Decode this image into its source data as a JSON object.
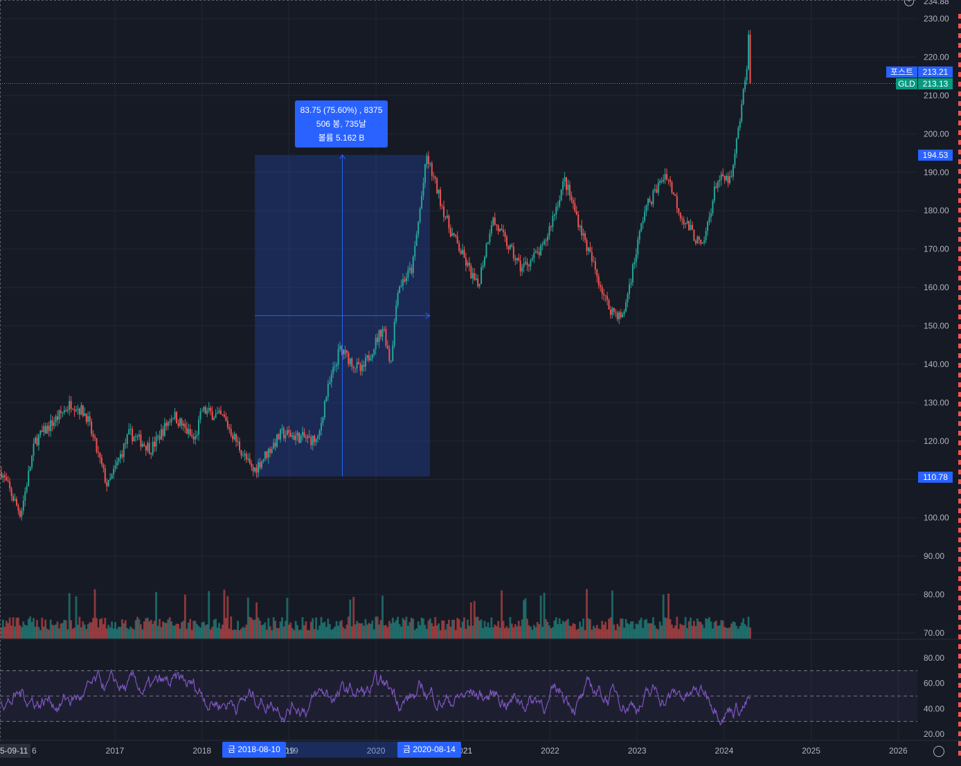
{
  "chart_data": [
    {
      "type": "candlestick",
      "symbol": "GLD",
      "y_ticks": [
        "230.00",
        "220.00",
        "210.00",
        "200.00",
        "190.00",
        "180.00",
        "170.00",
        "160.00",
        "150.00",
        "140.00",
        "130.00",
        "120.00",
        "110.00",
        "100.00",
        "90.00",
        "80.00",
        "70.00"
      ],
      "y_top_partial": "234.88",
      "x_ticks": [
        "2017",
        "2018",
        "2019",
        "2020",
        "2021",
        "2022",
        "2023",
        "2024",
        "2025",
        "2026"
      ],
      "x_tick_2016_partial": "6",
      "x_edge_label": "5-09-11",
      "last_close": "213.13",
      "post_price": "213.21",
      "post_label": "포스트",
      "symbol_label": "GLD",
      "approx_path": [
        [
          "2015-09-11",
          112
        ],
        [
          "2015-11",
          105
        ],
        [
          "2015-12",
          101
        ],
        [
          "2016-02",
          120
        ],
        [
          "2016-07",
          130
        ],
        [
          "2016-09",
          127
        ],
        [
          "2016-12",
          108
        ],
        [
          "2017-03",
          122
        ],
        [
          "2017-06",
          118
        ],
        [
          "2017-09",
          127
        ],
        [
          "2017-12",
          120
        ],
        [
          "2018-01",
          128
        ],
        [
          "2018-04",
          126
        ],
        [
          "2018-08",
          112
        ],
        [
          "2018-12",
          122
        ],
        [
          "2019-05",
          120
        ],
        [
          "2019-06",
          131
        ],
        [
          "2019-08",
          144
        ],
        [
          "2019-11",
          138
        ],
        [
          "2020-02",
          150
        ],
        [
          "2020-03",
          140
        ],
        [
          "2020-04",
          160
        ],
        [
          "2020-06",
          165
        ],
        [
          "2020-08",
          194
        ],
        [
          "2020-11",
          176
        ],
        [
          "2021-03",
          160
        ],
        [
          "2021-05",
          178
        ],
        [
          "2021-09",
          165
        ],
        [
          "2021-12",
          170
        ],
        [
          "2022-03",
          188
        ],
        [
          "2022-06",
          171
        ],
        [
          "2022-09",
          155
        ],
        [
          "2022-11",
          152
        ],
        [
          "2023-02",
          180
        ],
        [
          "2023-05",
          190
        ],
        [
          "2023-07",
          179
        ],
        [
          "2023-10",
          170
        ],
        [
          "2023-12",
          188
        ],
        [
          "2024-02",
          188
        ],
        [
          "2024-04",
          215
        ],
        [
          "2024-04-12",
          225
        ],
        [
          "2024-04-19",
          213
        ]
      ]
    },
    {
      "type": "volume",
      "approx_level": "histogram"
    },
    {
      "type": "line",
      "indicator": "RSI",
      "y_ticks": [
        "80.00",
        "60.00",
        "40.00",
        "20.00"
      ],
      "bands": [
        70,
        50,
        30
      ],
      "last": 50
    }
  ],
  "measurement": {
    "line1": "83.75 (75.60%) , 8375",
    "line2": "506 봉, 735날",
    "line3": "볼륨 5.162 B",
    "high_price": "194.53",
    "low_price": "110.78",
    "start_date": "금 2018-08-10",
    "end_date": "금 2020-08-14",
    "partial_2019": "19",
    "partial_2021": "21"
  },
  "colors": {
    "bg": "#161a25",
    "up": "#26a69a",
    "down": "#ef5350",
    "accent": "#2962ff",
    "rsi": "#7e57c2"
  },
  "icons": [
    "plus-circle-icon",
    "gear-icon"
  ]
}
